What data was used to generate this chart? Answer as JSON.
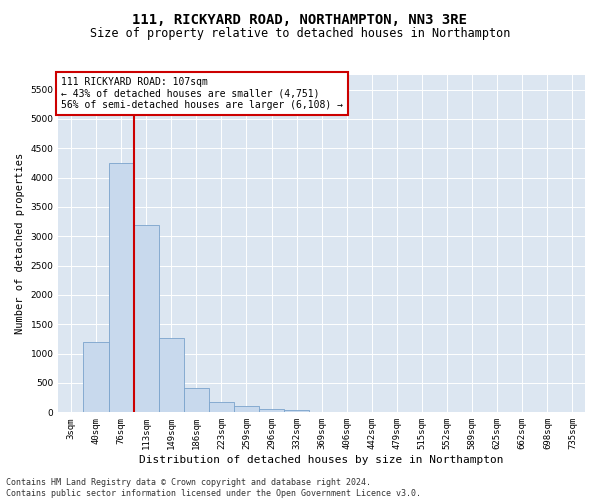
{
  "title": "111, RICKYARD ROAD, NORTHAMPTON, NN3 3RE",
  "subtitle": "Size of property relative to detached houses in Northampton",
  "xlabel": "Distribution of detached houses by size in Northampton",
  "ylabel": "Number of detached properties",
  "categories": [
    "3sqm",
    "40sqm",
    "76sqm",
    "113sqm",
    "149sqm",
    "186sqm",
    "223sqm",
    "259sqm",
    "296sqm",
    "332sqm",
    "369sqm",
    "406sqm",
    "442sqm",
    "479sqm",
    "515sqm",
    "552sqm",
    "589sqm",
    "625sqm",
    "662sqm",
    "698sqm",
    "735sqm"
  ],
  "bar_values": [
    0,
    1200,
    4250,
    3200,
    1270,
    420,
    175,
    100,
    60,
    40,
    10,
    5,
    0,
    0,
    0,
    0,
    0,
    0,
    0,
    0,
    0
  ],
  "bar_color": "#c8d9ed",
  "bar_edgecolor": "#7aa3cc",
  "vline_x_idx": 2,
  "vline_right_edge": true,
  "vline_color": "#cc0000",
  "annotation_line1": "111 RICKYARD ROAD: 107sqm",
  "annotation_line2": "← 43% of detached houses are smaller (4,751)",
  "annotation_line3": "56% of semi-detached houses are larger (6,108) →",
  "annotation_box_facecolor": "#ffffff",
  "annotation_box_edgecolor": "#cc0000",
  "ylim": [
    0,
    5750
  ],
  "yticks": [
    0,
    500,
    1000,
    1500,
    2000,
    2500,
    3000,
    3500,
    4000,
    4500,
    5000,
    5500
  ],
  "bg_color": "#dce6f1",
  "grid_color": "#ffffff",
  "footer_line1": "Contains HM Land Registry data © Crown copyright and database right 2024.",
  "footer_line2": "Contains public sector information licensed under the Open Government Licence v3.0.",
  "title_fontsize": 10,
  "subtitle_fontsize": 8.5,
  "xlabel_fontsize": 8,
  "ylabel_fontsize": 7.5,
  "tick_fontsize": 6.5,
  "annotation_fontsize": 7,
  "footer_fontsize": 6
}
